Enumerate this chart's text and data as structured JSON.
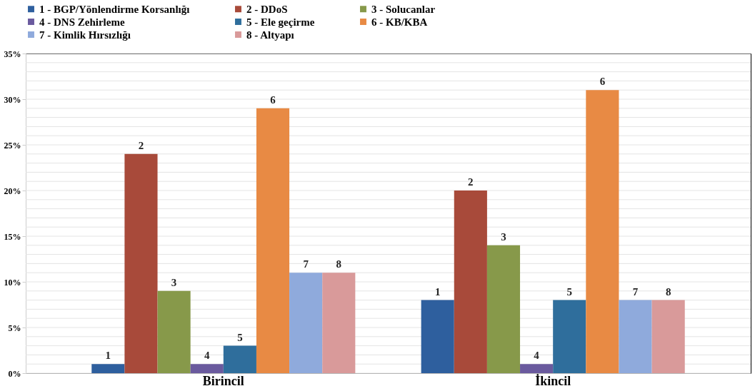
{
  "chart_data": {
    "type": "bar",
    "categories": [
      "Birincil",
      "İkincil"
    ],
    "ylim": [
      0,
      35
    ],
    "yticks": [
      {
        "value": 0,
        "label": "0%"
      },
      {
        "value": 1,
        "label": null
      },
      {
        "value": 2,
        "label": null
      },
      {
        "value": 3,
        "label": null
      },
      {
        "value": 4,
        "label": null
      },
      {
        "value": 5,
        "label": "5%"
      },
      {
        "value": 6,
        "label": null
      },
      {
        "value": 7,
        "label": null
      },
      {
        "value": 8,
        "label": null
      },
      {
        "value": 9,
        "label": null
      },
      {
        "value": 10,
        "label": "10%"
      },
      {
        "value": 11,
        "label": null
      },
      {
        "value": 12,
        "label": null
      },
      {
        "value": 13,
        "label": null
      },
      {
        "value": 14,
        "label": null
      },
      {
        "value": 15,
        "label": "15%"
      },
      {
        "value": 16,
        "label": null
      },
      {
        "value": 17,
        "label": null
      },
      {
        "value": 18,
        "label": null
      },
      {
        "value": 19,
        "label": null
      },
      {
        "value": 20,
        "label": "20%"
      },
      {
        "value": 21,
        "label": null
      },
      {
        "value": 22,
        "label": null
      },
      {
        "value": 23,
        "label": null
      },
      {
        "value": 24,
        "label": null
      },
      {
        "value": 25,
        "label": "25%"
      },
      {
        "value": 26,
        "label": null
      },
      {
        "value": 27,
        "label": null
      },
      {
        "value": 28,
        "label": null
      },
      {
        "value": 29,
        "label": null
      },
      {
        "value": 30,
        "label": "30%"
      },
      {
        "value": 31,
        "label": null
      },
      {
        "value": 32,
        "label": null
      },
      {
        "value": 33,
        "label": null
      },
      {
        "value": 34,
        "label": null
      },
      {
        "value": 35,
        "label": "35%"
      }
    ],
    "grid": "y",
    "legend": "top",
    "series": [
      {
        "name": "1 - BGP/Yönlendirme Korsanlığı",
        "color": "#2e5f9e",
        "values": [
          1,
          8
        ]
      },
      {
        "name": "2 - DDoS",
        "color": "#a84a3a",
        "values": [
          24,
          20
        ]
      },
      {
        "name": "3 - Solucanlar",
        "color": "#87994a",
        "values": [
          9,
          14
        ]
      },
      {
        "name": "4 - DNS Zehirleme",
        "color": "#6a5a9e",
        "values": [
          1,
          1
        ]
      },
      {
        "name": "5 - Ele geçirme",
        "color": "#2f6e9c",
        "values": [
          3,
          8
        ]
      },
      {
        "name": "6 - KB/KBA",
        "color": "#e88a44",
        "values": [
          29,
          31
        ]
      },
      {
        "name": "7 - Kimlik Hırsızlığı",
        "color": "#8faadc",
        "values": [
          11,
          8
        ]
      },
      {
        "name": "8 - Altyapı",
        "color": "#d99a9a",
        "values": [
          11,
          8
        ]
      }
    ],
    "annotations": [
      "1",
      "2",
      "3",
      "4",
      "5",
      "6",
      "7",
      "8",
      "1",
      "2",
      "3",
      "4",
      "5",
      "6",
      "7",
      "8"
    ]
  }
}
